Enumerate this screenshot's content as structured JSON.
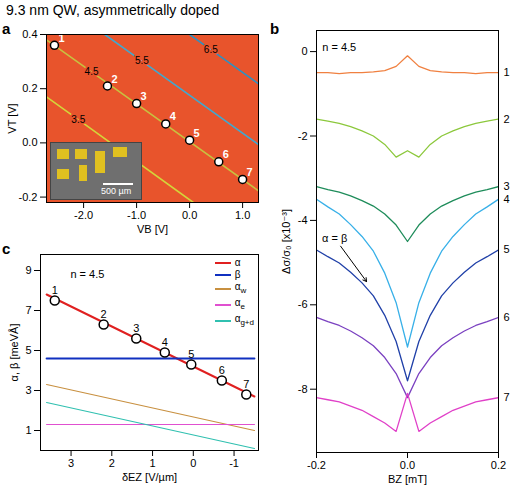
{
  "title": "9.3 nm QW, asymmetrically doped",
  "chart_data": [
    {
      "panel": "a",
      "type": "contour",
      "xlabel": "VB [V]",
      "ylabel": "VT [V]",
      "xlim": [
        -2.7,
        1.3
      ],
      "ylim": [
        -0.22,
        0.4
      ],
      "xticks": [
        {
          "value": -2,
          "label": "-2.0"
        },
        {
          "value": -1,
          "label": "-1.0"
        },
        {
          "value": 0,
          "label": "0.0"
        },
        {
          "value": 1,
          "label": "1.0"
        }
      ],
      "yticks": [
        {
          "value": -0.2,
          "label": "-0.2"
        },
        {
          "value": 0,
          "label": "0.0"
        },
        {
          "value": 0.2,
          "label": "0.2"
        },
        {
          "value": 0.4,
          "label": "0.4"
        }
      ],
      "color": "#e8542c",
      "contours": [
        {
          "level": 3.5,
          "color": "#d4d43a",
          "x": [
            -2.7,
            -2.1,
            0.07
          ],
          "y": [
            0.17,
            0.086,
            -0.22
          ]
        },
        {
          "level": 4.5,
          "color": "#c8c040",
          "x": [
            -2.7,
            -1.85,
            1.3
          ],
          "y": [
            0.38,
            0.262,
            -0.177
          ]
        },
        {
          "level": 5.5,
          "color": "#40a8d0",
          "x": [
            -1.6,
            -0.9,
            1.3
          ],
          "y": [
            0.4,
            0.302,
            -0.006
          ]
        },
        {
          "level": 6.5,
          "color": "#3090c0",
          "x": [
            0.0,
            0.4,
            1.3
          ],
          "y": [
            0.4,
            0.344,
            0.218
          ]
        }
      ],
      "points": {
        "labels": [
          "1",
          "2",
          "3",
          "4",
          "5",
          "6",
          "7"
        ],
        "x": [
          -2.55,
          -1.55,
          -1.0,
          -0.45,
          0.0,
          0.55,
          1.0
        ],
        "y": [
          0.36,
          0.21,
          0.145,
          0.07,
          0.01,
          -0.07,
          -0.135
        ],
        "color": "#ffffff",
        "marker": "circle"
      },
      "inset_text": "500 µm"
    },
    {
      "panel": "b",
      "type": "line",
      "xlabel": "BZ [mT]",
      "ylabel": "Δσ/σ₀ [x10⁻³]",
      "xlim": [
        -0.2,
        0.2
      ],
      "ylim": [
        -9.5,
        0.5
      ],
      "xticks": [
        -0.2,
        {
          "value": 0,
          "label": "0.0"
        },
        0.2
      ],
      "yticks": [
        0,
        -2,
        -4,
        -6,
        -8
      ],
      "x": [
        -0.2,
        -0.175,
        -0.15,
        -0.125,
        -0.1,
        -0.075,
        -0.05,
        -0.025,
        0,
        0.025,
        0.05,
        0.075,
        0.1,
        0.125,
        0.15,
        0.175,
        0.2
      ],
      "series": [
        {
          "name": "1",
          "color": "#f08040",
          "values": [
            -0.5,
            -0.5,
            -0.52,
            -0.5,
            -0.5,
            -0.48,
            -0.45,
            -0.35,
            -0.1,
            -0.35,
            -0.45,
            -0.48,
            -0.5,
            -0.5,
            -0.52,
            -0.5,
            -0.5
          ]
        },
        {
          "name": "2",
          "color": "#8cc83c",
          "values": [
            -1.6,
            -1.65,
            -1.7,
            -1.78,
            -1.88,
            -2.0,
            -2.2,
            -2.5,
            -2.35,
            -2.5,
            -2.2,
            -2.0,
            -1.88,
            -1.78,
            -1.7,
            -1.65,
            -1.6
          ]
        },
        {
          "name": "3",
          "color": "#1e8c5a",
          "values": [
            -3.2,
            -3.27,
            -3.33,
            -3.42,
            -3.53,
            -3.66,
            -3.85,
            -4.11,
            -4.5,
            -4.11,
            -3.85,
            -3.66,
            -3.53,
            -3.42,
            -3.33,
            -3.27,
            -3.2
          ]
        },
        {
          "name": "4",
          "color": "#38b0e8",
          "values": [
            -3.5,
            -3.68,
            -3.85,
            -4.1,
            -4.38,
            -4.73,
            -5.25,
            -5.95,
            -7.0,
            -5.95,
            -5.25,
            -4.73,
            -4.38,
            -4.1,
            -3.85,
            -3.68,
            -3.5
          ]
        },
        {
          "name": "5",
          "color": "#2040a8",
          "values": [
            -4.7,
            -4.86,
            -5.01,
            -5.23,
            -5.48,
            -5.79,
            -6.25,
            -6.87,
            -7.8,
            -6.87,
            -6.25,
            -5.79,
            -5.48,
            -5.23,
            -5.01,
            -4.86,
            -4.7
          ]
        },
        {
          "name": "6",
          "color": "#7a40c0",
          "values": [
            -6.3,
            -6.4,
            -6.49,
            -6.62,
            -6.78,
            -6.97,
            -7.25,
            -7.63,
            -8.2,
            -7.63,
            -7.25,
            -6.97,
            -6.78,
            -6.62,
            -6.49,
            -6.4,
            -6.3
          ]
        },
        {
          "name": "7",
          "color": "#e040c8",
          "values": [
            -8.2,
            -8.25,
            -8.3,
            -8.4,
            -8.5,
            -8.65,
            -8.8,
            -9.0,
            -8.1,
            -9.0,
            -8.8,
            -8.65,
            -8.5,
            -8.4,
            -8.3,
            -8.25,
            -8.2
          ]
        }
      ],
      "annotations": [
        {
          "text": "n = 4.5",
          "x": -0.15,
          "y": 0.1
        },
        {
          "text": "α = β",
          "x": -0.16,
          "y": -4.42,
          "arrow_to": [
            -0.09,
            -5.45
          ]
        }
      ]
    },
    {
      "panel": "c",
      "type": "line",
      "xlabel": "δEZ [V/µm]",
      "ylabel": "α, β [meVÅ]",
      "xlim": [
        3.75,
        -1.6
      ],
      "ylim": [
        0,
        9.8
      ],
      "xticks": [
        3,
        2,
        1,
        0,
        -1
      ],
      "yticks": [
        1,
        3,
        5,
        7,
        9
      ],
      "legend": "top-right",
      "series": [
        {
          "name": "α",
          "color": "#e02020",
          "x": [
            3.6,
            -1.5
          ],
          "values": [
            7.8,
            2.7
          ]
        },
        {
          "name": "β",
          "color": "#1030c0",
          "x": [
            3.6,
            -1.5
          ],
          "values": [
            4.6,
            4.6
          ]
        },
        {
          "name": "αw",
          "color": "#c89040",
          "x": [
            3.6,
            -1.5
          ],
          "values": [
            3.3,
            1.0
          ]
        },
        {
          "name": "αe",
          "color": "#e050d0",
          "x": [
            3.6,
            -1.5
          ],
          "values": [
            1.3,
            1.3
          ]
        },
        {
          "name": "αg+d",
          "color": "#30c0b0",
          "x": [
            3.6,
            -1.5
          ],
          "values": [
            2.4,
            0.1
          ]
        }
      ],
      "points": {
        "labels": [
          "1",
          "2",
          "3",
          "4",
          "5",
          "6",
          "7"
        ],
        "x": [
          3.4,
          2.2,
          1.4,
          0.7,
          0.05,
          -0.7,
          -1.3
        ],
        "y": [
          7.5,
          6.3,
          5.6,
          4.9,
          4.3,
          3.5,
          2.8
        ],
        "color": "#ffffff",
        "marker": "circle"
      },
      "annotations": [
        {
          "text": "n = 4.5",
          "x": 2.6,
          "y": 8.8
        }
      ]
    }
  ]
}
